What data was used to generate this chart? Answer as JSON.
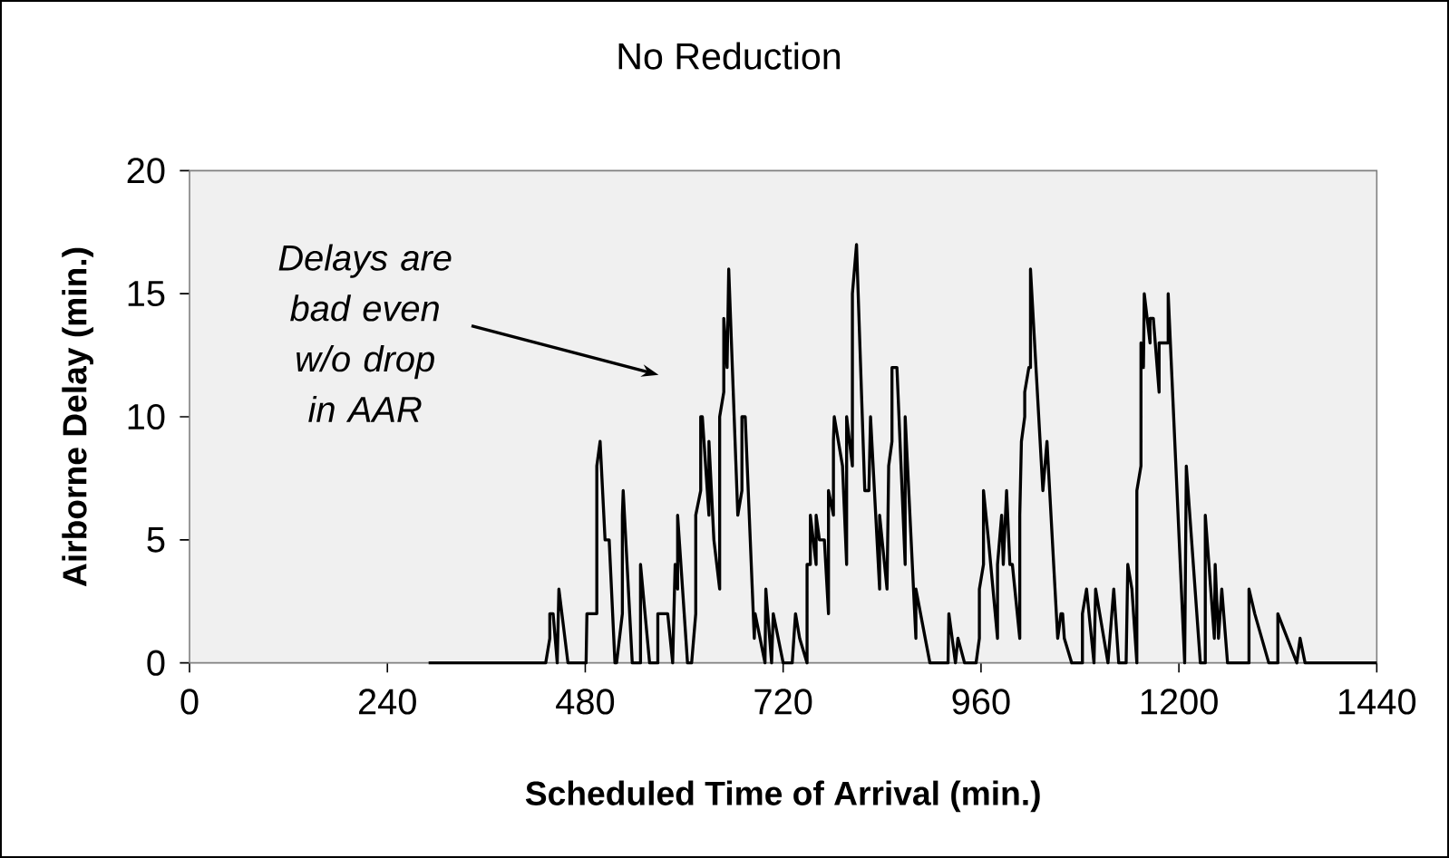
{
  "chart_data": {
    "type": "line",
    "title": "No Reduction",
    "xlabel": "Scheduled Time of Arrival (min.)",
    "ylabel": "Airborne Delay (min.)",
    "x": [
      290,
      432,
      437,
      437,
      441,
      446,
      448,
      459,
      481,
      482,
      494,
      494,
      498,
      504,
      509,
      516,
      518,
      525,
      525,
      526,
      537,
      547,
      547,
      558,
      568,
      568,
      580,
      586,
      589,
      592,
      592,
      604,
      609,
      614,
      614,
      620,
      620,
      622,
      630,
      630,
      636,
      643,
      643,
      648,
      648,
      652,
      654,
      665,
      670,
      670,
      674,
      685,
      686,
      698,
      699,
      706,
      708,
      720,
      731,
      735,
      740,
      749,
      749,
      753,
      753,
      760,
      760,
      764,
      770,
      775,
      775,
      781,
      781,
      782,
      792,
      797,
      797,
      804,
      804,
      809,
      819,
      824,
      826,
      837,
      837,
      846,
      848,
      852,
      852,
      858,
      868,
      868,
      881,
      881,
      898,
      920,
      921,
      929,
      932,
      940,
      954,
      958,
      958,
      963,
      963,
      969,
      980,
      980,
      985,
      987,
      991,
      995,
      998,
      1007,
      1007,
      1009,
      1013,
      1013,
      1018,
      1020,
      1020,
      1035,
      1040,
      1053,
      1057,
      1059,
      1061,
      1070,
      1083,
      1083,
      1088,
      1097,
      1099,
      1114,
      1121,
      1127,
      1136,
      1138,
      1143,
      1149,
      1149,
      1154,
      1154,
      1157,
      1158,
      1165,
      1165,
      1169,
      1176,
      1176,
      1187,
      1187,
      1207,
      1209,
      1226,
      1232,
      1232,
      1243,
      1244,
      1248,
      1252,
      1259,
      1285,
      1285,
      1292,
      1309,
      1320,
      1320,
      1343,
      1347,
      1353,
      1440
    ],
    "values": [
      0,
      0,
      1,
      2,
      2,
      0,
      3,
      0,
      0,
      2,
      2,
      8,
      9,
      5,
      5,
      0,
      0,
      2,
      6,
      7,
      0,
      0,
      4,
      0,
      0,
      2,
      2,
      0,
      4,
      3,
      6,
      0,
      0,
      2,
      6,
      7,
      10,
      10,
      6,
      9,
      5,
      3,
      10,
      11,
      14,
      12,
      16,
      6,
      7,
      10,
      10,
      1,
      2,
      0,
      3,
      0,
      2,
      0,
      0,
      2,
      1,
      0,
      4,
      4,
      6,
      4,
      6,
      5,
      5,
      2,
      7,
      6,
      9,
      10,
      8,
      4,
      10,
      8,
      15,
      17,
      7,
      7,
      10,
      3,
      6,
      3,
      8,
      9,
      12,
      12,
      4,
      10,
      1,
      3,
      0,
      0,
      2,
      0,
      1,
      0,
      0,
      1,
      3,
      4,
      7,
      5,
      1,
      4,
      6,
      4,
      7,
      4,
      4,
      1,
      6,
      9,
      10,
      11,
      12,
      12,
      16,
      7,
      9,
      1,
      2,
      2,
      1,
      0,
      0,
      2,
      3,
      0,
      3,
      0,
      3,
      0,
      0,
      4,
      3,
      0,
      7,
      8,
      13,
      12,
      15,
      13,
      14,
      14,
      11,
      13,
      13,
      15,
      0,
      8,
      0,
      0,
      6,
      1,
      4,
      1,
      3,
      0,
      0,
      3,
      2,
      0,
      0,
      2,
      0,
      1,
      0,
      0
    ],
    "color": "#000000",
    "marker": "none",
    "line_style": "solid",
    "xlim": [
      0,
      1440
    ],
    "ylim": [
      0,
      20
    ],
    "xticks": [
      0,
      240,
      480,
      720,
      960,
      1200,
      1440
    ],
    "yticks": [
      0,
      5,
      10,
      15,
      20
    ],
    "annotations": [
      "Delays are bad even w/o drop in AAR"
    ]
  }
}
